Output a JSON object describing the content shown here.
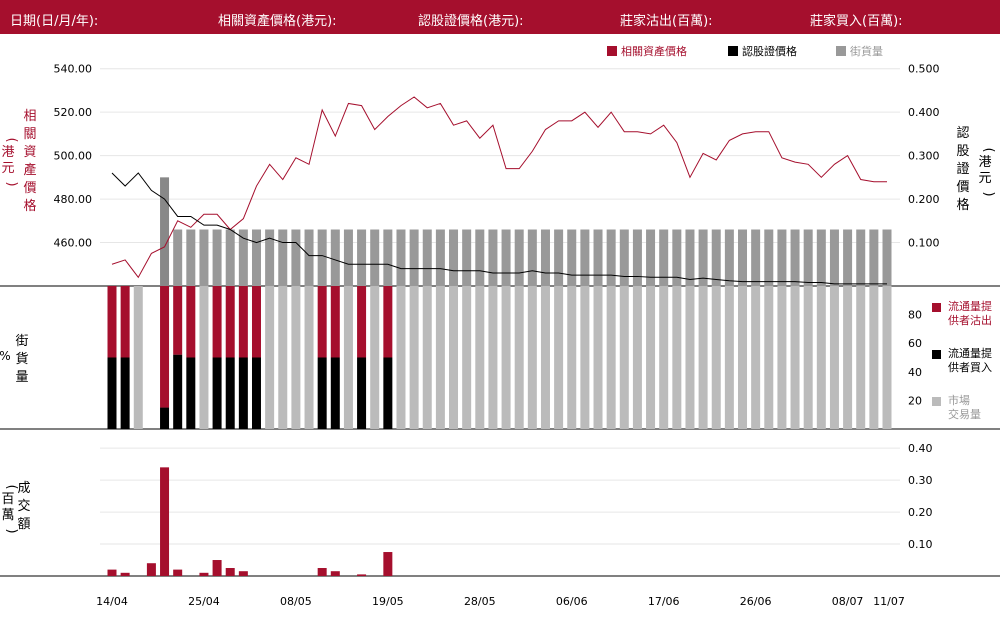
{
  "header": {
    "date_label": "日期(日/月/年):",
    "underlying_label": "相關資產價格(港元):",
    "warrant_label": "認股證價格(港元):",
    "sell_label": "莊家沽出(百萬):",
    "buy_label": "莊家買入(百萬):"
  },
  "colors": {
    "brand": "#a50f2d",
    "underlying": "#a50f2d",
    "warrant": "#000000",
    "street": "#999999",
    "market": "#bbbbbb"
  },
  "legend": {
    "underlying": "相關資產價格",
    "warrant": "認股證價格",
    "street": "街貨量"
  },
  "panels": {
    "price": {
      "left_axis_label": [
        "相",
        "關",
        "資",
        "產",
        "價",
        "格"
      ],
      "left_axis_unit": [
        "港",
        "元"
      ],
      "right_axis_label": [
        "認",
        "股",
        "證",
        "價",
        "格"
      ],
      "right_axis_unit": [
        "港",
        "元"
      ]
    },
    "pct": {
      "axis_label": [
        "街",
        "貨",
        "量"
      ],
      "axis_unit": "%",
      "legend": [
        [
          "流通量提",
          "供者沽出"
        ],
        [
          "流通量提",
          "供者買入"
        ],
        [
          "市場",
          "交易量"
        ]
      ]
    },
    "turnover": {
      "axis_label": [
        "成",
        "交",
        "額"
      ],
      "axis_unit": [
        "百",
        "萬"
      ]
    }
  },
  "chart_data": [
    {
      "type": "line",
      "x_ticks": [
        "14/04",
        "25/04",
        "08/05",
        "19/05",
        "28/05",
        "06/06",
        "17/06",
        "26/06",
        "08/07",
        "11/07"
      ],
      "left_ticks": [
        "540.00",
        "520.00",
        "500.00",
        "480.00",
        "460.00"
      ],
      "right_ticks": [
        "0.500",
        "0.400",
        "0.300",
        "0.200",
        "0.100"
      ],
      "ylim_left": [
        440,
        544
      ],
      "ylim_right": [
        0.0,
        0.52
      ],
      "series": [
        {
          "name": "相關資產價格",
          "axis": "left",
          "values": [
            450,
            452,
            444,
            455,
            458,
            470,
            467,
            473,
            473,
            466,
            471,
            486,
            496,
            489,
            499,
            496,
            521,
            509,
            524,
            523,
            512,
            518,
            523,
            527,
            522,
            524,
            514,
            516,
            508,
            514,
            494,
            494,
            502,
            512,
            516,
            516,
            520,
            513,
            520,
            511,
            511,
            510,
            514,
            506,
            490,
            501,
            498,
            507,
            510,
            511,
            511,
            499,
            497,
            496,
            490,
            496,
            500,
            489,
            488,
            488
          ]
        },
        {
          "name": "認股證價格",
          "axis": "right",
          "values": [
            0.26,
            0.23,
            0.26,
            0.22,
            0.2,
            0.16,
            0.16,
            0.14,
            0.14,
            0.13,
            0.11,
            0.1,
            0.11,
            0.1,
            0.1,
            0.07,
            0.07,
            0.06,
            0.05,
            0.05,
            0.05,
            0.05,
            0.04,
            0.04,
            0.04,
            0.04,
            0.035,
            0.035,
            0.035,
            0.03,
            0.03,
            0.03,
            0.035,
            0.03,
            0.03,
            0.025,
            0.025,
            0.025,
            0.025,
            0.022,
            0.022,
            0.02,
            0.02,
            0.02,
            0.015,
            0.018,
            0.015,
            0.012,
            0.01,
            0.01,
            0.01,
            0.01,
            0.01,
            0.008,
            0.008,
            0.005,
            0.005,
            0.005,
            0.005,
            0.005
          ]
        },
        {
          "name": "街貨量",
          "axis": "right",
          "values": [
            0,
            0,
            0,
            0,
            0.25,
            0.13,
            0.13,
            0.13,
            0.13,
            0.13,
            0.13,
            0.13,
            0.13,
            0.13,
            0.13,
            0.13,
            0.13,
            0.13,
            0.13,
            0.13,
            0.13,
            0.13,
            0.13,
            0.13,
            0.13,
            0.13,
            0.13,
            0.13,
            0.13,
            0.13,
            0.13,
            0.13,
            0.13,
            0.13,
            0.13,
            0.13,
            0.13,
            0.13,
            0.13,
            0.13,
            0.13,
            0.13,
            0.13,
            0.13,
            0.13,
            0.13,
            0.13,
            0.13,
            0.13,
            0.13,
            0.13,
            0.13,
            0.13,
            0.13,
            0.13,
            0.13,
            0.13,
            0.13,
            0.13,
            0.13
          ]
        }
      ]
    },
    {
      "type": "bar",
      "stacked": true,
      "y_ticks": [
        "80",
        "60",
        "40",
        "20"
      ],
      "ylim": [
        0,
        100
      ],
      "series": [
        {
          "name": "流通量提供者沽出",
          "values": [
            50,
            50,
            0,
            0,
            85,
            48,
            50,
            0,
            50,
            50,
            50,
            50,
            0,
            0,
            0,
            0,
            50,
            50,
            0,
            50,
            0,
            50,
            0,
            0,
            0,
            0,
            0,
            0,
            0,
            0,
            0,
            0,
            0,
            0,
            0,
            0,
            0,
            0,
            0,
            0,
            0,
            0,
            0,
            0,
            0,
            0,
            0,
            0,
            0,
            0,
            0,
            0,
            0,
            0,
            0,
            0,
            0,
            0,
            0,
            0
          ]
        },
        {
          "name": "流通量提供者買入",
          "values": [
            50,
            50,
            0,
            0,
            15,
            52,
            50,
            0,
            50,
            50,
            50,
            50,
            0,
            0,
            0,
            0,
            50,
            50,
            0,
            50,
            0,
            50,
            0,
            0,
            0,
            0,
            0,
            0,
            0,
            0,
            0,
            0,
            0,
            0,
            0,
            0,
            0,
            0,
            0,
            0,
            0,
            0,
            0,
            0,
            0,
            0,
            0,
            0,
            0,
            0,
            0,
            0,
            0,
            0,
            0,
            0,
            0,
            0,
            0,
            0
          ]
        },
        {
          "name": "市場交易量",
          "values": [
            0,
            0,
            100,
            0,
            0,
            0,
            0,
            100,
            0,
            0,
            0,
            0,
            100,
            100,
            100,
            100,
            0,
            0,
            100,
            0,
            100,
            0,
            100,
            100,
            100,
            100,
            100,
            100,
            100,
            100,
            100,
            100,
            100,
            100,
            100,
            100,
            100,
            100,
            100,
            100,
            100,
            100,
            100,
            100,
            100,
            100,
            100,
            100,
            100,
            100,
            100,
            100,
            100,
            100,
            100,
            100,
            100,
            100,
            100,
            100
          ]
        }
      ]
    },
    {
      "type": "bar",
      "y_ticks": [
        "0.40",
        "0.30",
        "0.20",
        "0.10"
      ],
      "ylim": [
        0,
        0.46
      ],
      "values": [
        0.02,
        0.01,
        0,
        0.04,
        0.34,
        0.02,
        0,
        0.01,
        0.05,
        0.025,
        0.015,
        0,
        0,
        0,
        0,
        0,
        0.025,
        0.015,
        0,
        0.005,
        0,
        0.075,
        0,
        0,
        0,
        0,
        0,
        0,
        0,
        0,
        0,
        0,
        0,
        0,
        0,
        0,
        0,
        0,
        0,
        0,
        0,
        0,
        0,
        0,
        0,
        0,
        0,
        0,
        0,
        0,
        0,
        0,
        0,
        0,
        0,
        0,
        0,
        0,
        0,
        0
      ]
    }
  ]
}
